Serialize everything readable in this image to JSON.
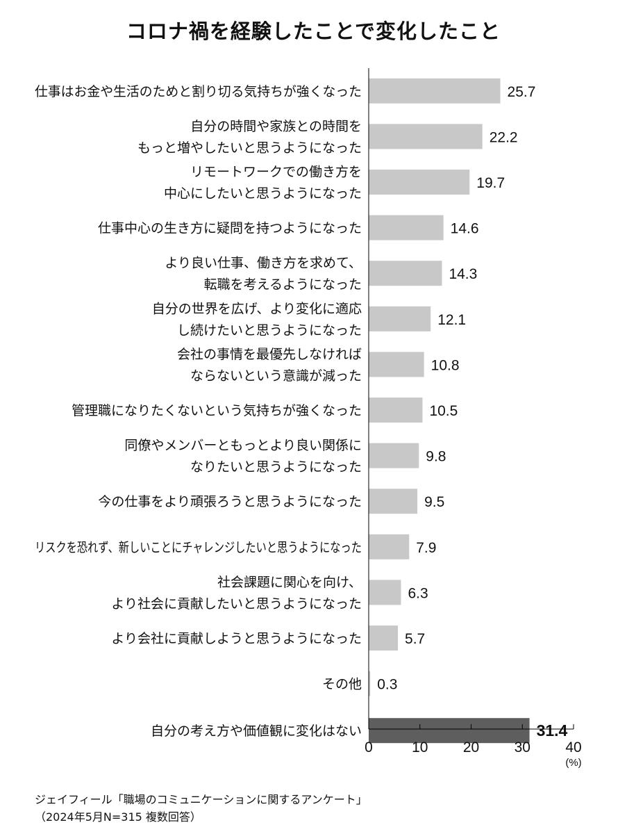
{
  "chart_data": {
    "type": "bar",
    "orientation": "horizontal",
    "title": "コロナ禍を経験したことで変化したこと",
    "categories": [
      [
        "仕事はお金や生活のためと割り切る気持ちが強くなった"
      ],
      [
        "自分の時間や家族との時間を",
        "もっと増やしたいと思うようになった"
      ],
      [
        "リモートワークでの働き方を",
        "中心にしたいと思うようになった"
      ],
      [
        "仕事中心の生き方に疑問を持つようになった"
      ],
      [
        "より良い仕事、働き方を求めて、",
        "転職を考えるようになった"
      ],
      [
        "自分の世界を広げ、より変化に適応",
        "し続けたいと思うようになった"
      ],
      [
        "会社の事情を最優先しなければ",
        "ならないという意識が減った"
      ],
      [
        "管理職になりたくないという気持ちが強くなった"
      ],
      [
        "同僚やメンバーともっとより良い関係に",
        "なりたいと思うようになった"
      ],
      [
        "今の仕事をより頑張ろうと思うようになった"
      ],
      [
        "リスクを恐れず、新しいことにチャレンジしたいと思うようになった"
      ],
      [
        "社会課題に関心を向け、",
        "より社会に貢献したいと思うようになった"
      ],
      [
        "より会社に貢献しようと思うようになった"
      ],
      [
        "その他"
      ],
      [
        "自分の考え方や価値観に変化はない"
      ]
    ],
    "values": [
      25.7,
      22.2,
      19.7,
      14.6,
      14.3,
      12.1,
      10.8,
      10.5,
      9.8,
      9.5,
      7.9,
      6.3,
      5.7,
      0.3,
      31.4
    ],
    "value_labels": [
      "25.7",
      "22.2",
      "19.7",
      "14.6",
      "14.3",
      "12.1",
      "10.8",
      "10.5",
      "9.8",
      "9.5",
      "7.9",
      "6.3",
      "5.7",
      "0.3",
      "31.4"
    ],
    "highlight_index": 14,
    "xlim": [
      0,
      40
    ],
    "xticks": [
      0,
      10,
      20,
      30,
      40
    ],
    "xtick_labels": [
      "0",
      "10",
      "20",
      "30",
      "40"
    ],
    "xunit": "(%)",
    "grid": false,
    "colors": {
      "bar": "#c8c8c8",
      "bar_highlight": "#5e5e5e",
      "axis": "#000000"
    }
  },
  "source": {
    "line1": "ジェイフィール「職場のコミュニケーションに関するアンケート」",
    "line2": "（2024年5月N=315 複数回答）"
  }
}
